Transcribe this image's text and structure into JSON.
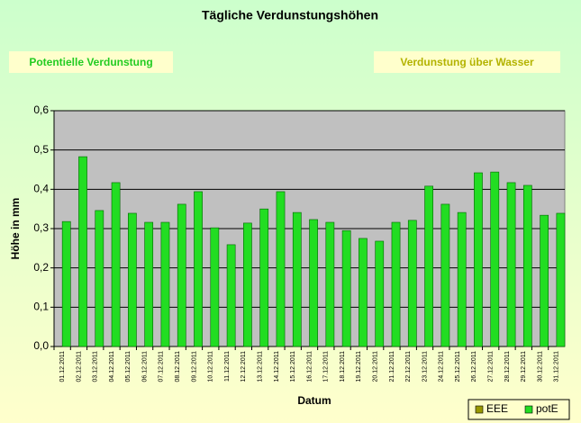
{
  "buttons": [
    {
      "label": "Potentielle Verdunstung",
      "color": "#22cc22"
    },
    {
      "label": "Verdunstung über Wasser",
      "color": "#b3b300"
    }
  ],
  "chart_data": {
    "type": "bar",
    "title": "Tägliche Verdunstungshöhen",
    "x_label": "Datum",
    "y_label": "Höhe in mm",
    "categories": [
      "01.12.2011",
      "02.12.2011",
      "03.12.2011",
      "04.12.2011",
      "05.12.2011",
      "06.12.2011",
      "07.12.2011",
      "08.12.2011",
      "09.12.2011",
      "10.12.2011",
      "11.12.2011",
      "12.12.2011",
      "13.12.2011",
      "14.12.2011",
      "15.12.2011",
      "16.12.2011",
      "17.12.2011",
      "18.12.2011",
      "19.12.2011",
      "20.12.2011",
      "21.12.2011",
      "22.12.2011",
      "23.12.2011",
      "24.12.2011",
      "25.12.2011",
      "26.12.2011",
      "27.12.2011",
      "28.12.2011",
      "29.12.2011",
      "30.12.2011",
      "31.12.2011"
    ],
    "series": [
      {
        "name": "EEE",
        "color": "#999900",
        "values": [
          null,
          null,
          null,
          null,
          null,
          null,
          null,
          null,
          null,
          null,
          null,
          null,
          null,
          null,
          null,
          null,
          null,
          null,
          null,
          null,
          null,
          null,
          null,
          null,
          null,
          null,
          null,
          null,
          null,
          null,
          null
        ]
      },
      {
        "name": "potE",
        "color": "#22dd22",
        "values": [
          0.318,
          0.483,
          0.346,
          0.417,
          0.339,
          0.316,
          0.316,
          0.362,
          0.394,
          0.302,
          0.259,
          0.314,
          0.35,
          0.394,
          0.341,
          0.323,
          0.316,
          0.295,
          0.275,
          0.268,
          0.316,
          0.321,
          0.408,
          0.362,
          0.341,
          0.442,
          0.444,
          0.417,
          0.41,
          0.334,
          0.339
        ]
      }
    ],
    "ylim": [
      0,
      0.6
    ],
    "yticks": [
      {
        "value": 0,
        "label": "0,0"
      },
      {
        "value": 0.1,
        "label": "0,1"
      },
      {
        "value": 0.2,
        "label": "0,2"
      },
      {
        "value": 0.3,
        "label": "0,3"
      },
      {
        "value": 0.4,
        "label": "0,4"
      },
      {
        "value": 0.5,
        "label": "0,5"
      },
      {
        "value": 0.6,
        "label": "0,6"
      }
    ],
    "grid": true,
    "legend": "bottom-right",
    "plot_background": "#c0c0c0"
  }
}
